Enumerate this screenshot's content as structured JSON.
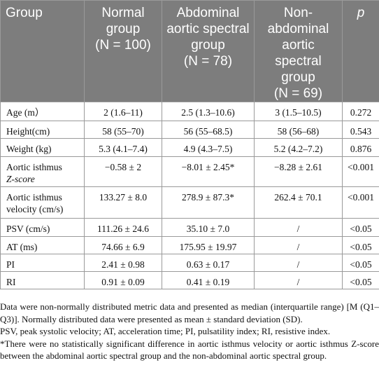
{
  "headers": {
    "group": "Group",
    "normal_title": "Normal group",
    "normal_n": "(N = 100)",
    "abdominal_title": "Abdominal aortic spectral group",
    "abdominal_n": "(N = 78)",
    "non_title": "Non-abdominal aortic spectral group",
    "non_n": "(N = 69)",
    "p": "p"
  },
  "rows": [
    {
      "label": "Age (m）",
      "normal": "2 (1.6–11)",
      "abdominal": "2.5 (1.3–10.6)",
      "non": "3 (1.5–10.5)",
      "p": "0.272"
    },
    {
      "label": "Height(cm)",
      "normal": "58 (55–70)",
      "abdominal": "56 (55–68.5)",
      "non": "58 (56–68)",
      "p": "0.543"
    },
    {
      "label": "Weight (kg)",
      "normal": "5.3 (4.1–7.4)",
      "abdominal": "4.9 (4.3–7.5)",
      "non": "5.2 (4.2–7.2)",
      "p": "0.876"
    },
    {
      "label_prefix": "Aortic isthmus",
      "label_suffix": "Z-score",
      "normal": "−0.58 ± 2",
      "abdominal": "−8.01 ± 2.45*",
      "non": "−8.28 ± 2.61",
      "p": "<0.001"
    },
    {
      "label_prefix": "Aortic isthmus",
      "label_suffix": "velocity (cm/s)",
      "normal": "133.27 ± 8.0",
      "abdominal": "278.9 ± 87.3*",
      "non": "262.4 ± 70.1",
      "p": "<0.001"
    },
    {
      "label": "PSV (cm/s)",
      "normal": "111.26 ± 24.6",
      "abdominal": "35.10 ± 7.0",
      "non": "/",
      "p": "<0.05"
    },
    {
      "label": "AT (ms)",
      "normal": "74.66 ± 6.9",
      "abdominal": "175.95 ± 19.97",
      "non": "/",
      "p": "<0.05"
    },
    {
      "label": "PI",
      "normal": "2.41 ± 0.98",
      "abdominal": "0.63 ± 0.17",
      "non": "/",
      "p": "<0.05"
    },
    {
      "label": "RI",
      "normal": "0.91 ± 0.09",
      "abdominal": "0.41 ± 0.19",
      "non": "/",
      "p": "<0.05"
    }
  ],
  "footnotes": {
    "note1": "Data were non-normally distributed metric data and presented as median (interquartile range) [M (Q1–Q3)]. Normally distributed data were presented as mean ± standard deviation (SD).",
    "note2": "PSV, peak systolic velocity; AT, acceleration time; PI, pulsatility index; RI, resistive index.",
    "note3": "*There were no statistically significant difference in aortic isthmus velocity or aortic isthmus Z-score between the abdominal aortic spectral group and the non-abdominal aortic spectral group."
  }
}
